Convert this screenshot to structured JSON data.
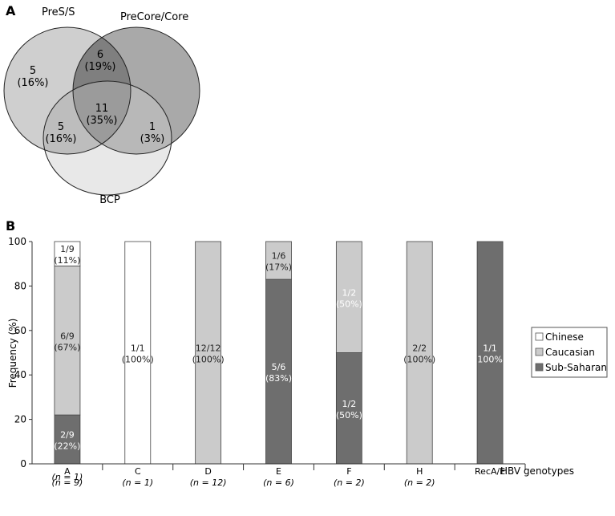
{
  "panel_a": {
    "label": "A",
    "sets": {
      "pres": "PreS/S",
      "precore": "PreCore/Core",
      "bcp": "BCP"
    },
    "regions": {
      "pres_only": {
        "count": "5",
        "pct": "(16%)"
      },
      "pres_precore": {
        "count": "6",
        "pct": "(19%)"
      },
      "all_three": {
        "count": "11",
        "pct": "(35%)"
      },
      "pres_bcp": {
        "count": "5",
        "pct": "(16%)"
      },
      "precore_bcp": {
        "count": "1",
        "pct": "(3%)"
      }
    },
    "colors": {
      "pres": "#cfcfcf",
      "precore": "#a9a9a9",
      "bcp": "#e8e8e8",
      "pres_precore": "#7f7f7f",
      "all_three": "#9b9b9b",
      "pres_bcp": "#bdbdbd",
      "precore_bcp": "#b8b8b8"
    }
  },
  "panel_b": {
    "label": "B",
    "xaxis_title": "HBV genotypes",
    "extra_n_label": "(n = 1)"
  },
  "chart_data": {
    "type": "bar",
    "stacked": true,
    "ylabel": "Frequency (%)",
    "xlabel": "HBV genotypes",
    "ylim": [
      0,
      100
    ],
    "yticks": [
      0,
      20,
      40,
      60,
      80,
      100
    ],
    "categories": [
      "A",
      "C",
      "D",
      "E",
      "F",
      "H",
      "RecA/E"
    ],
    "category_n": [
      "(n = 9)",
      "(n = 1)",
      "(n = 12)",
      "(n = 6)",
      "(n = 2)",
      "(n = 2)",
      ""
    ],
    "legend_position": "right",
    "series": [
      {
        "name": "Sub-Saharan",
        "color": "#6e6e6e",
        "values": [
          22,
          0,
          0,
          83,
          50,
          0,
          100
        ],
        "labels": [
          [
            "2/9",
            "(22%)"
          ],
          null,
          null,
          [
            "5/6",
            "(83%)"
          ],
          [
            "1/2",
            "(50%)"
          ],
          null,
          [
            "1/1",
            "(100%)"
          ]
        ]
      },
      {
        "name": "Caucasian",
        "color": "#cbcbcb",
        "values": [
          67,
          0,
          100,
          17,
          50,
          100,
          0
        ],
        "labels": [
          [
            "6/9",
            "(67%)"
          ],
          null,
          [
            "12/12",
            "(100%)"
          ],
          [
            "1/6",
            "(17%)"
          ],
          [
            "1/2",
            "(50%)"
          ],
          [
            "2/2",
            "(100%)"
          ],
          null
        ]
      },
      {
        "name": "Chinese",
        "color": "#ffffff",
        "values": [
          11,
          100,
          0,
          0,
          0,
          0,
          0
        ],
        "labels": [
          [
            "1/9",
            "(11%)"
          ],
          [
            "1/1",
            "(100%)"
          ],
          null,
          null,
          null,
          null,
          null
        ]
      }
    ]
  }
}
